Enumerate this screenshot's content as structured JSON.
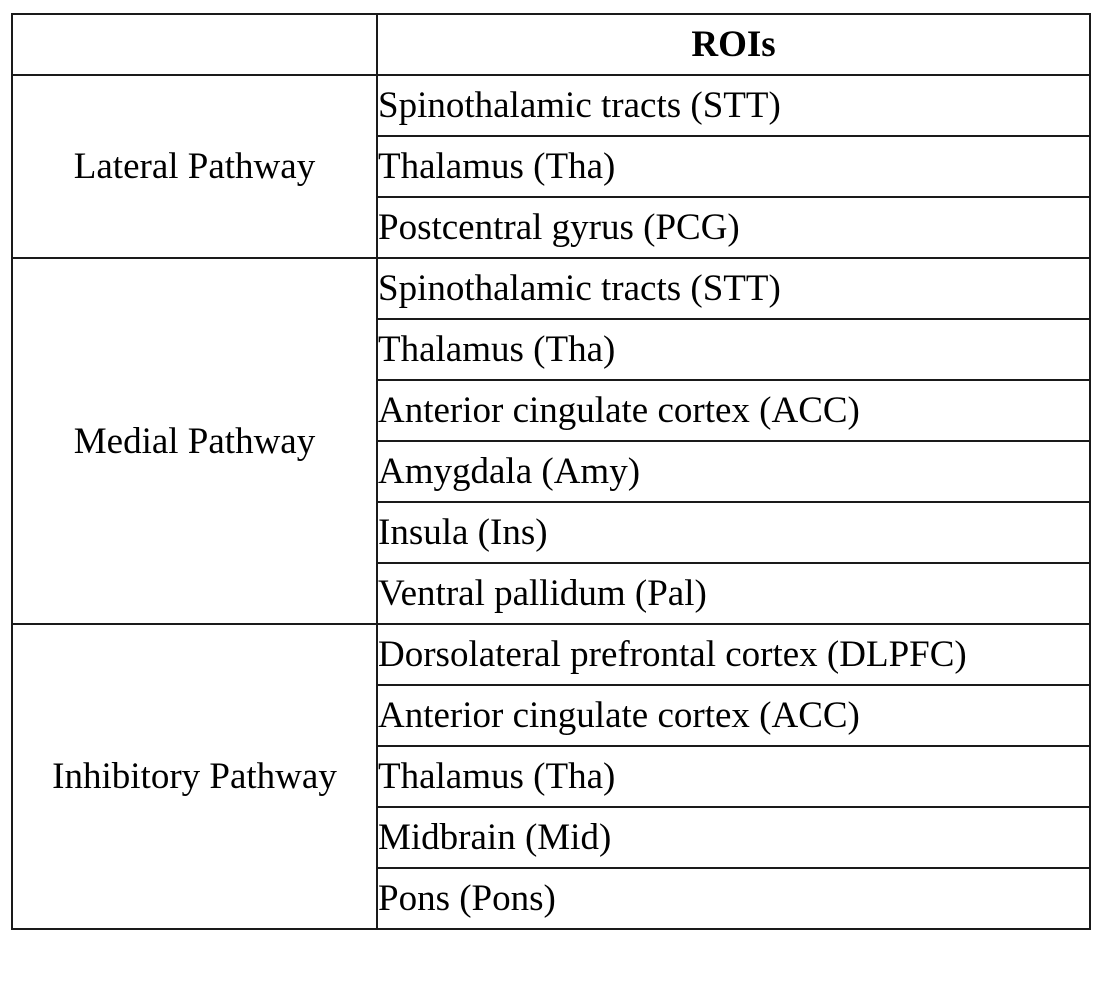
{
  "table": {
    "header": {
      "corner": "",
      "rois": "ROIs"
    },
    "groups": [
      {
        "pathway": "Lateral Pathway",
        "rois": [
          "Spinothalamic tracts (STT)",
          "Thalamus (Tha)",
          "Postcentral gyrus (PCG)"
        ]
      },
      {
        "pathway": "Medial Pathway",
        "rois": [
          "Spinothalamic tracts (STT)",
          "Thalamus (Tha)",
          "Anterior cingulate cortex (ACC)",
          "Amygdala (Amy)",
          "Insula (Ins)",
          "Ventral pallidum (Pal)"
        ]
      },
      {
        "pathway": "Inhibitory Pathway",
        "rois": [
          "Dorsolateral prefrontal cortex (DLPFC)",
          "Anterior cingulate cortex (ACC)",
          "Thalamus (Tha)",
          "Midbrain (Mid)",
          "Pons (Pons)"
        ]
      }
    ]
  }
}
